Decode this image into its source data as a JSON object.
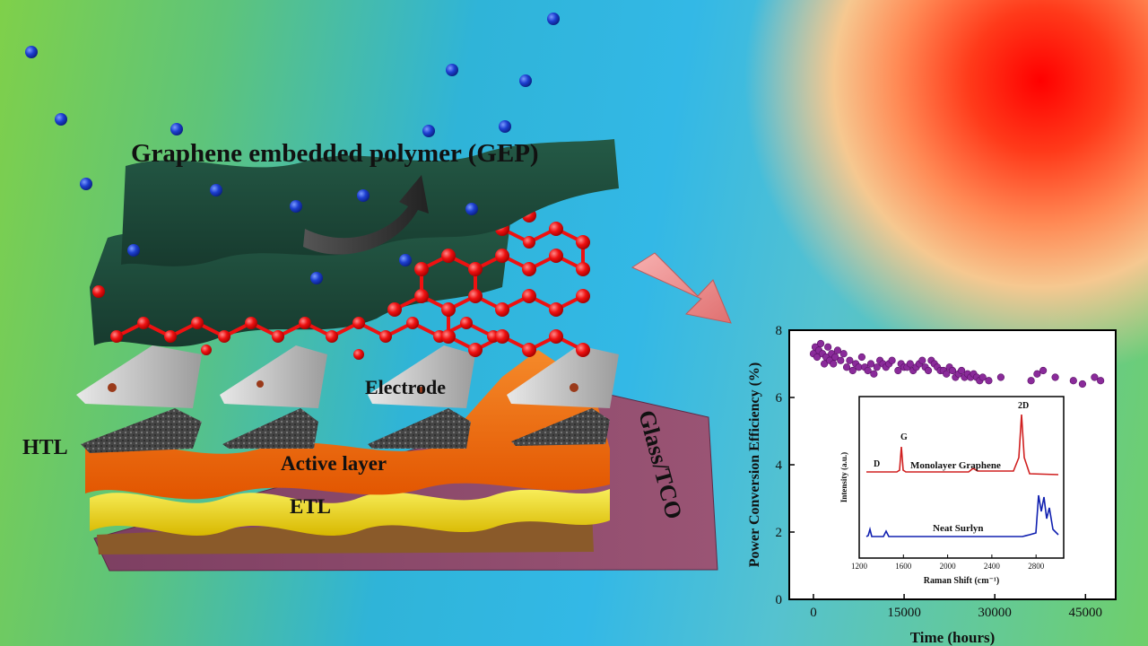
{
  "labels": {
    "gep": "Graphene embedded polymer (GEP)",
    "electrode": "Electrode",
    "htl": "HTL",
    "active": "Active layer",
    "etl": "ETL",
    "glass": "Glass/TCO"
  },
  "colors": {
    "gep": "#1f4a3a",
    "graphene": "#ee1111",
    "active": "#f26a10",
    "etl": "#f4e020",
    "glass": "#8e4a6a",
    "electrode": "#c8c8c8",
    "htl": "#3a3a3a",
    "scatter": "#8a2b9a",
    "raman_graphene": "#d02020",
    "raman_surlyn": "#1020b0",
    "particle": "#1d3fd0"
  },
  "chart_data": [
    {
      "type": "scatter",
      "xlabel": "Time (hours)",
      "ylabel": "Power Conversion Efficiency (%)",
      "xlim": [
        -4000,
        50000
      ],
      "ylim": [
        0,
        8
      ],
      "xticks": [
        0,
        15000,
        30000,
        45000
      ],
      "yticks": [
        0,
        2,
        4,
        6,
        8
      ],
      "x": [
        0,
        300,
        600,
        900,
        1200,
        1500,
        1800,
        2100,
        2400,
        2700,
        3000,
        3300,
        3600,
        4000,
        4500,
        5000,
        5500,
        6000,
        6500,
        7000,
        7500,
        8000,
        8500,
        9000,
        9500,
        10000,
        10500,
        11000,
        11500,
        12000,
        12500,
        13000,
        14000,
        14500,
        15000,
        15500,
        16000,
        16500,
        17000,
        17500,
        18000,
        18500,
        19000,
        19500,
        20000,
        20500,
        21000,
        21500,
        22000,
        22500,
        23000,
        23500,
        24000,
        24500,
        25000,
        25500,
        26000,
        26500,
        27000,
        27500,
        28000,
        29000,
        31000,
        36000,
        37000,
        38000,
        40000,
        43000,
        44500,
        46500,
        47500
      ],
      "y": [
        7.3,
        7.5,
        7.2,
        7.4,
        7.6,
        7.3,
        7.0,
        7.2,
        7.5,
        7.1,
        7.3,
        7.0,
        7.2,
        7.4,
        7.1,
        7.3,
        6.9,
        7.1,
        6.8,
        7.0,
        6.9,
        7.2,
        6.9,
        6.8,
        7.0,
        6.7,
        6.9,
        7.1,
        7.0,
        6.9,
        7.0,
        7.1,
        6.8,
        7.0,
        6.9,
        6.9,
        7.0,
        6.8,
        6.9,
        7.0,
        7.1,
        6.9,
        6.8,
        7.1,
        7.0,
        6.9,
        6.8,
        6.8,
        6.7,
        6.9,
        6.8,
        6.6,
        6.7,
        6.8,
        6.6,
        6.7,
        6.6,
        6.7,
        6.6,
        6.5,
        6.6,
        6.5,
        6.6,
        6.5,
        6.7,
        6.8,
        6.6,
        6.5,
        6.4,
        6.6,
        6.5
      ]
    },
    {
      "type": "line",
      "xlabel": "Raman Shift (cm⁻¹)",
      "ylabel": "Intensity (a.u.)",
      "xlim": [
        1200,
        3050
      ],
      "xticks": [
        1200,
        1600,
        2000,
        2400,
        2800
      ],
      "series": [
        {
          "name": "Monolayer Graphene",
          "peaks": [
            "D",
            "G",
            "2D"
          ]
        },
        {
          "name": "Neat Surlyn"
        }
      ]
    }
  ]
}
